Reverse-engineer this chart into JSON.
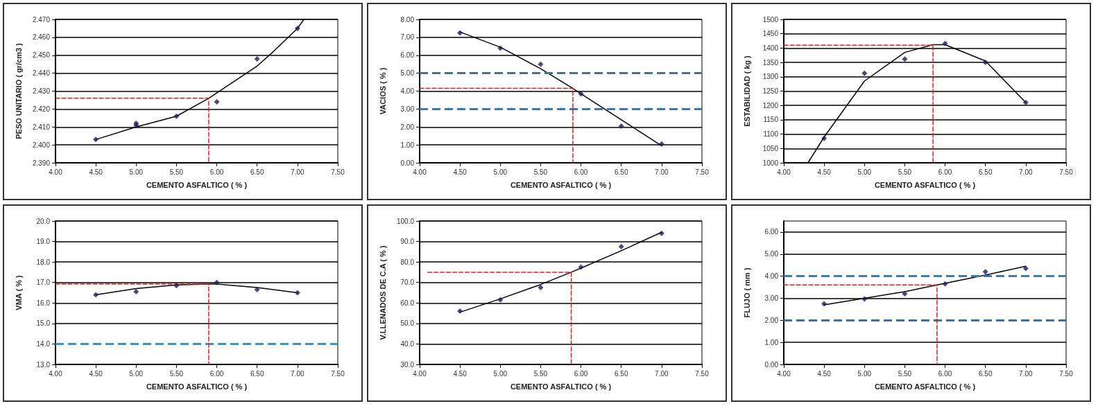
{
  "chart_data": [
    {
      "type": "scatter",
      "xlabel": "CEMENTO ASFALTICO ( % )",
      "ylabel": "PESO UNITARIO ( gr/cm3 )",
      "xlim": [
        4,
        7.5
      ],
      "xticks": [
        {
          "value": 4,
          "label": "4.00"
        },
        {
          "value": 4.5,
          "label": "4.50"
        },
        {
          "value": 5,
          "label": "5.00"
        },
        {
          "value": 5.5,
          "label": "5.50"
        },
        {
          "value": 6,
          "label": "6.00"
        },
        {
          "value": 6.5,
          "label": "6.50"
        },
        {
          "value": 7,
          "label": "7.00"
        },
        {
          "value": 7.5,
          "label": "7.50"
        }
      ],
      "ylim": [
        2.39,
        2.47
      ],
      "yticks": [
        {
          "value": 2.39,
          "label": "2.390"
        },
        {
          "value": 2.4,
          "label": "2.400"
        },
        {
          "value": 2.41,
          "label": "2.410"
        },
        {
          "value": 2.42,
          "label": "2.420"
        },
        {
          "value": 2.43,
          "label": "2.430"
        },
        {
          "value": 2.44,
          "label": "2.440"
        },
        {
          "value": 2.45,
          "label": "2.450"
        },
        {
          "value": 2.46,
          "label": "2.460"
        },
        {
          "value": 2.47,
          "label": "2.470"
        }
      ],
      "grid": "y",
      "marker": "diamond",
      "series": [
        {
          "type": "scatter",
          "color": "#1a1a5e",
          "x": [
            4.5,
            5,
            5,
            5.5,
            6,
            6.5,
            7
          ],
          "values": [
            2.403,
            2.411,
            2.412,
            2.416,
            2.424,
            2.448,
            2.465
          ]
        },
        {
          "type": "line",
          "color": "#000000",
          "marker": "none",
          "x": [
            4.5,
            5,
            5.5,
            5.9,
            6,
            6.5,
            6.7,
            7,
            7.08
          ],
          "values": [
            2.403,
            2.41,
            2.416,
            2.426,
            2.429,
            2.444,
            2.452,
            2.465,
            2.47
          ]
        },
        {
          "type": "line",
          "color": "#e02020",
          "marker": "none",
          "line_style": "dashed",
          "x": [
            4,
            5.9,
            5.9
          ],
          "values": [
            2.426,
            2.426,
            2.39
          ]
        }
      ]
    },
    {
      "type": "scatter",
      "xlabel": "CEMENTO ASFALTICO ( % )",
      "ylabel": "VACIOS ( % )",
      "xlim": [
        4,
        7.5
      ],
      "xticks": [
        {
          "value": 4,
          "label": "4.00"
        },
        {
          "value": 4.5,
          "label": "4.50"
        },
        {
          "value": 5,
          "label": "5.00"
        },
        {
          "value": 5.5,
          "label": "5.50"
        },
        {
          "value": 6,
          "label": "6.00"
        },
        {
          "value": 6.5,
          "label": "6.50"
        },
        {
          "value": 7,
          "label": "7.00"
        },
        {
          "value": 7.5,
          "label": "7.50"
        }
      ],
      "ylim": [
        0,
        8
      ],
      "yticks": [
        {
          "value": 0,
          "label": "0.00"
        },
        {
          "value": 1,
          "label": "1.00"
        },
        {
          "value": 2,
          "label": "2.00"
        },
        {
          "value": 3,
          "label": "3.00"
        },
        {
          "value": 4,
          "label": "4.00"
        },
        {
          "value": 5,
          "label": "5.00"
        },
        {
          "value": 6,
          "label": "6.00"
        },
        {
          "value": 7,
          "label": "7.00"
        },
        {
          "value": 8,
          "label": "8.00"
        }
      ],
      "grid": "y",
      "marker": "diamond",
      "ref_lines": [
        {
          "axis": "y",
          "value": 5,
          "color": "#4a7090",
          "line_style": "dashed"
        },
        {
          "axis": "y",
          "value": 3,
          "color": "#3a78b0",
          "line_style": "dashed"
        }
      ],
      "series": [
        {
          "type": "scatter",
          "color": "#1a1a5e",
          "x": [
            4.5,
            5,
            5.5,
            6,
            6.5,
            7
          ],
          "values": [
            7.25,
            6.4,
            5.5,
            3.85,
            2.05,
            1.05
          ]
        },
        {
          "type": "line",
          "color": "#000000",
          "marker": "none",
          "x": [
            4.5,
            5,
            5.5,
            5.9,
            6,
            6.5,
            7
          ],
          "values": [
            7.3,
            6.45,
            5.25,
            4.15,
            3.85,
            2.4,
            0.95
          ]
        },
        {
          "type": "line",
          "color": "#e02020",
          "marker": "none",
          "line_style": "dashed",
          "x": [
            4,
            5.9,
            5.9
          ],
          "values": [
            4.15,
            4.15,
            0
          ]
        }
      ]
    },
    {
      "type": "scatter",
      "xlabel": "CEMENTO ASFALTICO ( % )",
      "ylabel": "ESTABILIDAD ( kg )",
      "xlim": [
        4,
        7.5
      ],
      "xticks": [
        {
          "value": 4,
          "label": "4.00"
        },
        {
          "value": 4.5,
          "label": "4.50"
        },
        {
          "value": 5,
          "label": "5.00"
        },
        {
          "value": 5.5,
          "label": "5.50"
        },
        {
          "value": 6,
          "label": "6.00"
        },
        {
          "value": 6.5,
          "label": "6.50"
        },
        {
          "value": 7,
          "label": "7.00"
        },
        {
          "value": 7.5,
          "label": "7.50"
        }
      ],
      "ylim": [
        1000,
        1500
      ],
      "yticks": [
        1000,
        1050,
        1100,
        1150,
        1200,
        1250,
        1300,
        1350,
        1400,
        1450,
        1500
      ],
      "grid": "y",
      "marker": "diamond",
      "series": [
        {
          "type": "scatter",
          "color": "#1a1a5e",
          "x": [
            4.5,
            5,
            5.5,
            6,
            6.5,
            7
          ],
          "values": [
            1085,
            1312,
            1362,
            1416,
            1350,
            1210
          ]
        },
        {
          "type": "line",
          "color": "#000000",
          "marker": "none",
          "x": [
            4.3,
            4.5,
            5,
            5.5,
            5.85,
            6,
            6.5,
            7
          ],
          "values": [
            1000,
            1090,
            1285,
            1385,
            1412,
            1412,
            1355,
            1210
          ]
        },
        {
          "type": "line",
          "color": "#e02020",
          "marker": "none",
          "line_style": "dashed",
          "x": [
            4,
            5.85,
            5.85
          ],
          "values": [
            1410,
            1410,
            1000
          ]
        }
      ]
    },
    {
      "type": "scatter",
      "xlabel": "CEMENTO ASFALTICO ( % )",
      "ylabel": "VMA ( % )",
      "xlim": [
        4,
        7.5
      ],
      "xticks": [
        {
          "value": 4,
          "label": "4.00"
        },
        {
          "value": 4.5,
          "label": "4.50"
        },
        {
          "value": 5,
          "label": "5.00"
        },
        {
          "value": 5.5,
          "label": "5.50"
        },
        {
          "value": 6,
          "label": "6.00"
        },
        {
          "value": 6.5,
          "label": "6.50"
        },
        {
          "value": 7,
          "label": "7.00"
        },
        {
          "value": 7.5,
          "label": "7.50"
        }
      ],
      "ylim": [
        13,
        20
      ],
      "yticks": [
        {
          "value": 13,
          "label": "13.0"
        },
        {
          "value": 14,
          "label": "14.0"
        },
        {
          "value": 15,
          "label": "15.0"
        },
        {
          "value": 16,
          "label": "16.0"
        },
        {
          "value": 17,
          "label": "17.0"
        },
        {
          "value": 18,
          "label": "18.0"
        },
        {
          "value": 19,
          "label": "19.0"
        },
        {
          "value": 20,
          "label": "20.0"
        }
      ],
      "grid": "y",
      "marker": "diamond",
      "ref_lines": [
        {
          "axis": "y",
          "value": 14,
          "color": "#3a90d0",
          "line_style": "dashed"
        }
      ],
      "series": [
        {
          "type": "scatter",
          "color": "#1a1a5e",
          "x": [
            4.5,
            5,
            5.5,
            6,
            6.5,
            7
          ],
          "values": [
            16.4,
            16.55,
            16.85,
            17,
            16.65,
            16.5
          ]
        },
        {
          "type": "line",
          "color": "#000000",
          "marker": "none",
          "x": [
            4.5,
            5,
            5.5,
            5.9,
            6,
            6.5,
            7
          ],
          "values": [
            16.4,
            16.7,
            16.88,
            16.92,
            16.92,
            16.75,
            16.5
          ]
        },
        {
          "type": "line",
          "color": "#e02020",
          "marker": "none",
          "line_style": "dashed",
          "x": [
            4,
            5.9,
            5.9
          ],
          "values": [
            16.92,
            16.92,
            13
          ]
        }
      ]
    },
    {
      "type": "scatter",
      "xlabel": "CEMENTO ASFALTICO ( % )",
      "ylabel": "V.LLENADOS DE C.A ( % )",
      "xlim": [
        4,
        7.5
      ],
      "xticks": [
        {
          "value": 4,
          "label": "4.00"
        },
        {
          "value": 4.5,
          "label": "4.50"
        },
        {
          "value": 5,
          "label": "5.00"
        },
        {
          "value": 5.5,
          "label": "5.50"
        },
        {
          "value": 6,
          "label": "6.00"
        },
        {
          "value": 6.5,
          "label": "6.50"
        },
        {
          "value": 7,
          "label": "7.00"
        },
        {
          "value": 7.5,
          "label": "7.50"
        }
      ],
      "ylim": [
        30,
        100
      ],
      "yticks": [
        {
          "value": 30,
          "label": "30.0"
        },
        {
          "value": 40,
          "label": "40.0"
        },
        {
          "value": 50,
          "label": "50.0"
        },
        {
          "value": 60,
          "label": "60.0"
        },
        {
          "value": 70,
          "label": "70.0"
        },
        {
          "value": 80,
          "label": "80.0"
        },
        {
          "value": 90,
          "label": "90.0"
        },
        {
          "value": 100,
          "label": "100.0"
        }
      ],
      "grid": "y",
      "marker": "diamond",
      "series": [
        {
          "type": "scatter",
          "color": "#1a1a5e",
          "x": [
            4.5,
            5,
            5.5,
            6,
            6.5,
            7
          ],
          "values": [
            56,
            61.5,
            67.5,
            77.5,
            87.5,
            94
          ]
        },
        {
          "type": "line",
          "color": "#000000",
          "marker": "none",
          "x": [
            4.5,
            5,
            5.5,
            5.88,
            6,
            6.5,
            7
          ],
          "values": [
            55.5,
            62,
            69,
            75,
            77,
            85.5,
            94.5
          ]
        },
        {
          "type": "line",
          "color": "#e02020",
          "marker": "none",
          "line_style": "dashed",
          "x": [
            4.1,
            5.88,
            5.88
          ],
          "values": [
            75,
            75,
            30
          ]
        }
      ]
    },
    {
      "type": "scatter",
      "xlabel": "CEMENTO ASFALTICO ( % )",
      "ylabel": "FLUJO ( mm )",
      "xlim": [
        4,
        7.5
      ],
      "xticks": [
        {
          "value": 4,
          "label": "4.00"
        },
        {
          "value": 4.5,
          "label": "4.50"
        },
        {
          "value": 5,
          "label": "5.00"
        },
        {
          "value": 5.5,
          "label": "5.50"
        },
        {
          "value": 6,
          "label": "6.00"
        },
        {
          "value": 6.5,
          "label": "6.50"
        },
        {
          "value": 7,
          "label": "7.00"
        },
        {
          "value": 7.5,
          "label": "7.50"
        }
      ],
      "ylim": [
        0,
        6.5
      ],
      "yticks": [
        {
          "value": 0,
          "label": "0.00"
        },
        {
          "value": 1,
          "label": "1.00"
        },
        {
          "value": 2,
          "label": "2.00"
        },
        {
          "value": 3,
          "label": "3.00"
        },
        {
          "value": 4,
          "label": "4.00"
        },
        {
          "value": 5,
          "label": "5.00"
        },
        {
          "value": 6,
          "label": "6.00"
        }
      ],
      "grid": "y",
      "marker": "diamond",
      "ref_lines": [
        {
          "axis": "y",
          "value": 4,
          "color": "#3a7cb8",
          "line_style": "dashed"
        },
        {
          "axis": "y",
          "value": 2,
          "color": "#3a6f9e",
          "line_style": "dashed"
        }
      ],
      "series": [
        {
          "type": "scatter",
          "color": "#1a1a5e",
          "x": [
            4.5,
            5,
            5.5,
            6,
            6.5,
            7
          ],
          "values": [
            2.75,
            2.97,
            3.2,
            3.65,
            4.2,
            4.35
          ]
        },
        {
          "type": "line",
          "color": "#000000",
          "marker": "none",
          "x": [
            4.5,
            5,
            5.5,
            5.9,
            6.5,
            7
          ],
          "values": [
            2.7,
            3,
            3.3,
            3.6,
            4.05,
            4.45
          ]
        },
        {
          "type": "line",
          "color": "#e02020",
          "marker": "none",
          "line_style": "dashed",
          "x": [
            4,
            5.9,
            5.9
          ],
          "values": [
            3.6,
            3.6,
            0
          ]
        }
      ]
    }
  ]
}
